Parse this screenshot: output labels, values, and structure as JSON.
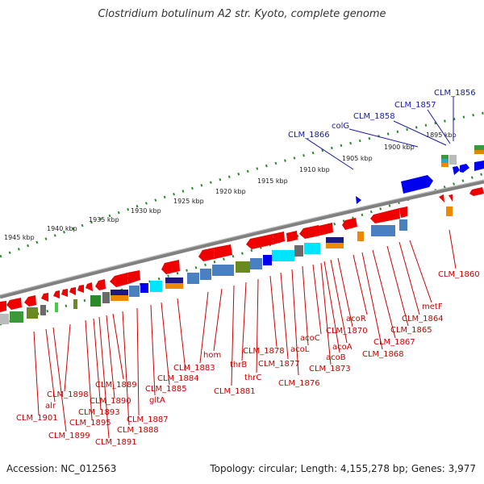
{
  "title": "Clostridium botulinum A2 str. Kyoto, complete genome",
  "footer": {
    "accession": "Accession: NC_012563",
    "summary": "Topology: circular; Length: 4,155,278 bp; Genes: 3,977"
  },
  "kbp_ticks": [
    "1895 kbp",
    "1900 kbp",
    "1905 kbp",
    "1910 kbp",
    "1915 kbp",
    "1920 kbp",
    "1925 kbp",
    "1930 kbp",
    "1935 kbp",
    "1940 kbp",
    "1945 kbp"
  ],
  "labels_top": [
    "CLM_1856",
    "CLM_1857",
    "CLM_1858",
    "colG",
    "CLM_1866"
  ],
  "labels_right": [
    "CLM_1860"
  ],
  "labels_bottom": [
    "metF",
    "CLM_1864",
    "CLM_1865",
    "CLM_1867",
    "CLM_1868",
    "acoR",
    "CLM_1870",
    "acoA",
    "acoB",
    "CLM_1873",
    "acoC",
    "acoL",
    "CLM_1876",
    "CLM_1877",
    "CLM_1878",
    "thrC",
    "thrB",
    "CLM_1881",
    "hom",
    "CLM_1883",
    "CLM_1884",
    "CLM_1885",
    "gltA",
    "CLM_1887",
    "CLM_1888",
    "CLM_1889",
    "CLM_1890",
    "CLM_1891",
    "CLM_1893",
    "CLM_1895",
    "CLM_1898",
    "CLM_1899",
    "alr",
    "CLM_1901"
  ],
  "colors": {
    "forward_gene": "#0000ee",
    "reverse_gene": "#ee0000",
    "backbone": "#808080",
    "tick": "#2a8a2a",
    "label_red": "#cc0000",
    "label_blue": "#1a1aa8"
  }
}
